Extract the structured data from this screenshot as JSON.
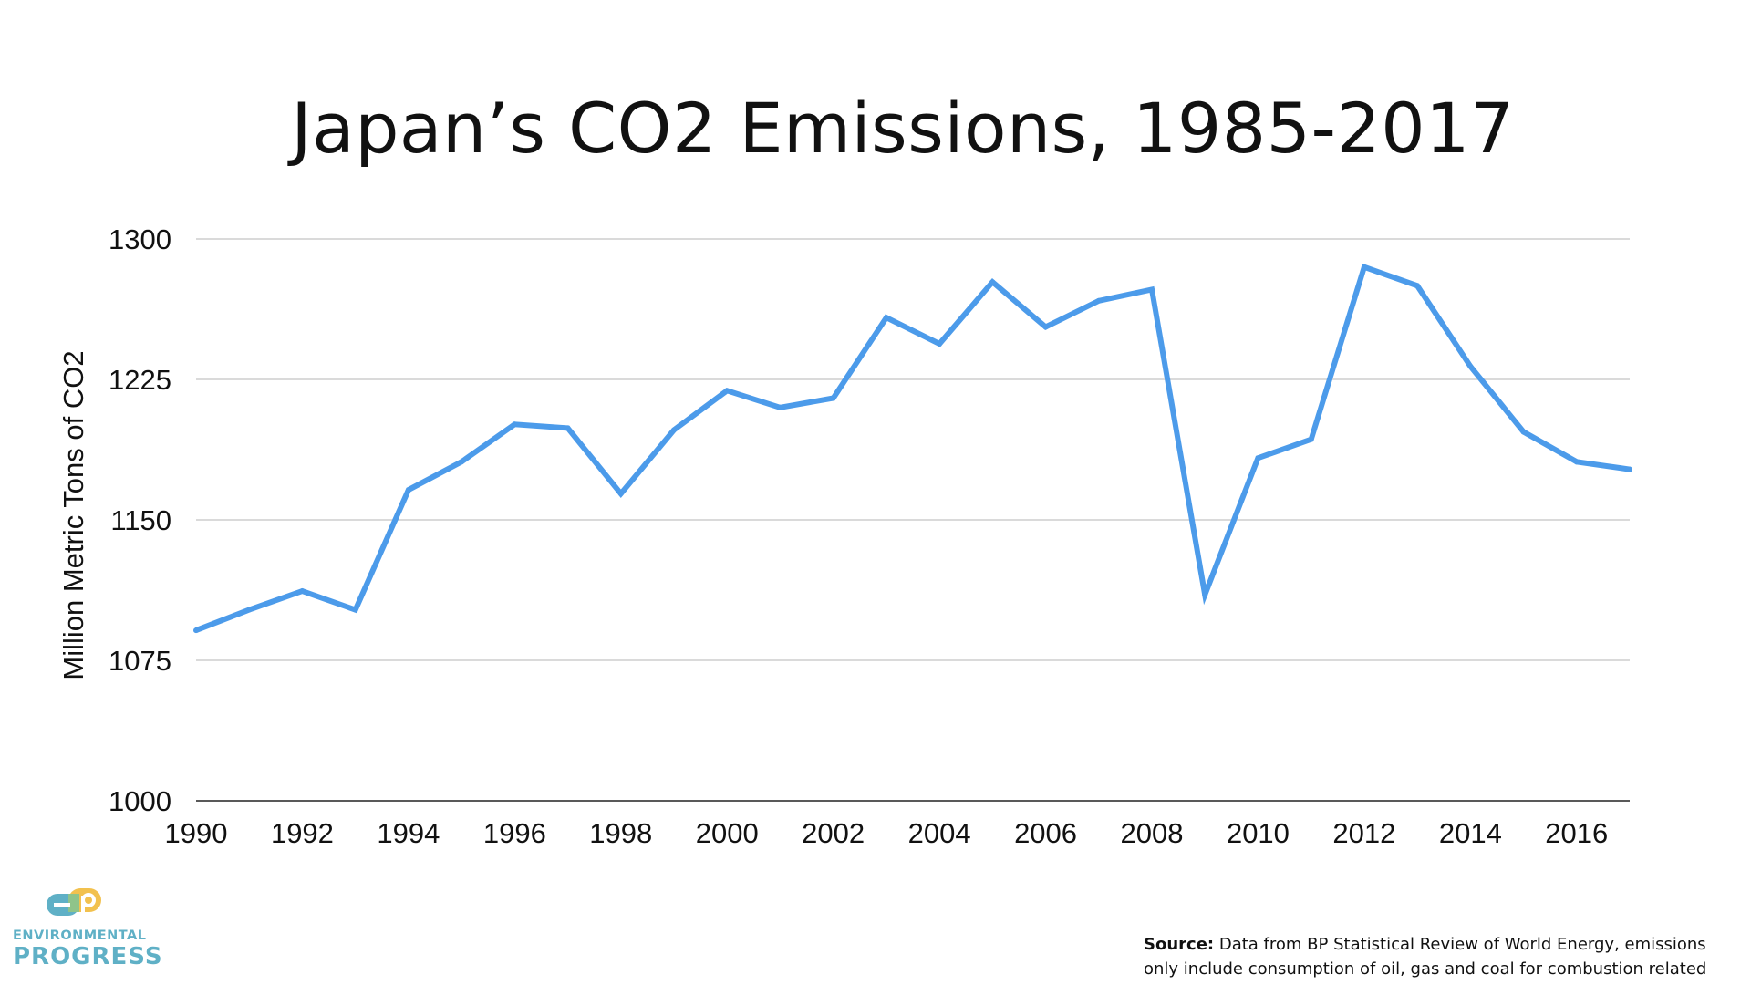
{
  "chart_data": {
    "type": "line",
    "title": "Japan’s CO2 Emissions, 1985-2017",
    "xlabel": "",
    "ylabel": "Million Metric Tons of CO2",
    "xlim": [
      1990,
      2017
    ],
    "ylim": [
      1000,
      1300
    ],
    "x_ticks": [
      1990,
      1992,
      1994,
      1996,
      1998,
      2000,
      2002,
      2004,
      2006,
      2008,
      2010,
      2012,
      2014,
      2016
    ],
    "y_ticks": [
      1000,
      1075,
      1150,
      1225,
      1300
    ],
    "grid": true,
    "legend": "none",
    "line_color": "#4c9bea",
    "series": [
      {
        "x": [
          1990,
          1991,
          1992,
          1993,
          1994,
          1995,
          1996,
          1997,
          1998,
          1999,
          2000,
          2001,
          2002,
          2003,
          2004,
          2005,
          2006,
          2007,
          2008,
          2009,
          2010,
          2011,
          2012,
          2013,
          2014,
          2015,
          2016,
          2017
        ],
        "values": [
          1091,
          1102,
          1112,
          1102,
          1166,
          1181,
          1201,
          1199,
          1164,
          1198,
          1219,
          1210,
          1215,
          1258,
          1244,
          1277,
          1253,
          1267,
          1273,
          1110,
          1183,
          1193,
          1285,
          1275,
          1232,
          1197,
          1181,
          1177
        ]
      }
    ]
  },
  "source": {
    "label": "Source:",
    "text": "Data from BP Statistical Review of World Energy, emissions only include consumption of oil, gas and coal for combustion related activities"
  },
  "logo": {
    "mark": "EP",
    "line1": "ENVIRONMENTAL",
    "line2": "PROGRESS",
    "colors": {
      "teal": "#5fb0c6",
      "yellow": "#f2c14e"
    }
  }
}
